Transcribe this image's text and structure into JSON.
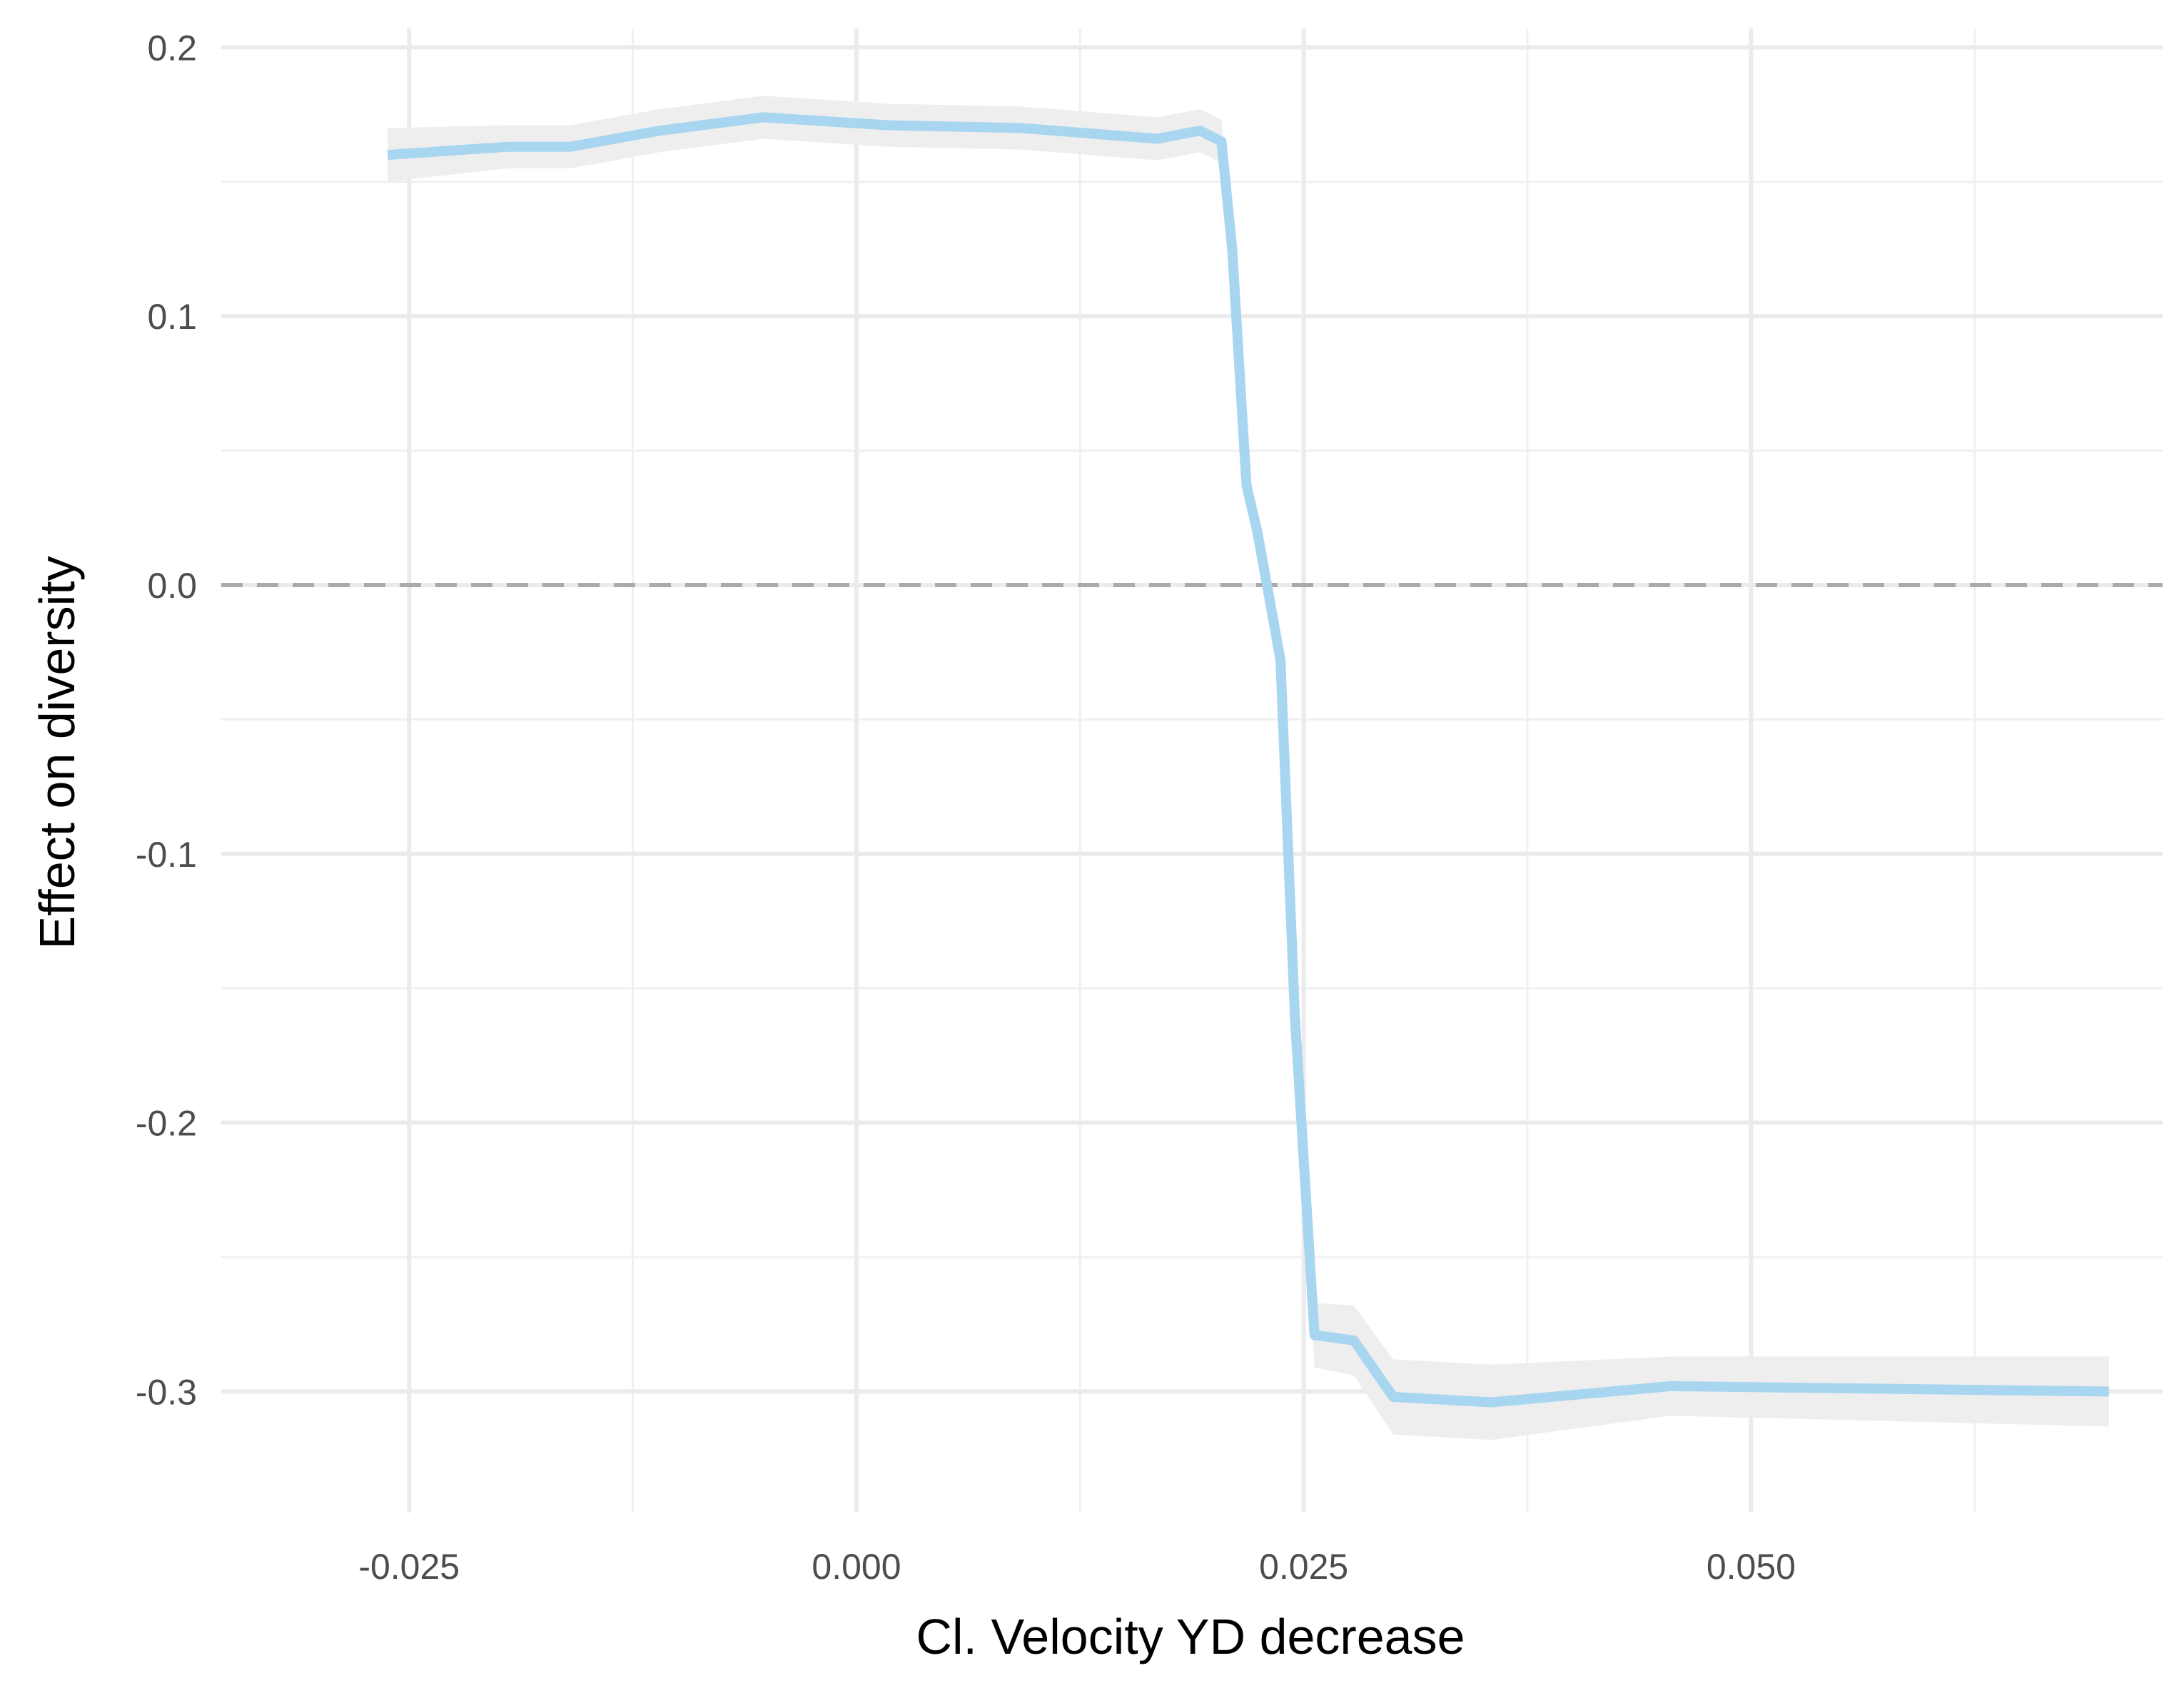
{
  "chart_data": {
    "type": "line",
    "xlabel": "Cl. Velocity YD decrease",
    "ylabel": "Effect on diversity",
    "xlim": [
      -0.0355,
      0.073
    ],
    "ylim": [
      -0.345,
      0.207
    ],
    "x_ticks": [
      {
        "value": -0.025,
        "label": "-0.025"
      },
      {
        "value": 0.0,
        "label": "0.000"
      },
      {
        "value": 0.025,
        "label": "0.025"
      },
      {
        "value": 0.05,
        "label": "0.050"
      }
    ],
    "y_ticks": [
      {
        "value": 0.2,
        "label": "0.2"
      },
      {
        "value": 0.1,
        "label": "0.1"
      },
      {
        "value": 0.0,
        "label": "0.0"
      },
      {
        "value": -0.1,
        "label": "-0.1"
      },
      {
        "value": -0.2,
        "label": "-0.2"
      },
      {
        "value": -0.3,
        "label": "-0.3"
      }
    ],
    "x_minor_ticks": [
      -0.0125,
      0.0125,
      0.0375,
      0.0625
    ],
    "y_minor_ticks": [
      0.15,
      0.05,
      -0.05,
      -0.15,
      -0.25
    ],
    "grid": true,
    "reference_line": {
      "y": 0.0,
      "style": "dashed",
      "color": "#aaaaaa"
    },
    "line_color": "#a8d5ef",
    "band_color": "#eeeeee",
    "series": [
      {
        "x": [
          -0.0262,
          -0.0195,
          -0.016,
          -0.011,
          -0.0052,
          0.0018,
          0.0092,
          0.0168,
          0.0192,
          0.0204,
          0.021,
          0.0218,
          0.0224,
          0.023,
          0.0237,
          0.0245,
          0.0256,
          0.0278,
          0.03,
          0.0355,
          0.0455,
          0.07
        ],
        "y": [
          0.16,
          0.163,
          0.163,
          0.169,
          0.174,
          0.171,
          0.17,
          0.166,
          0.169,
          0.165,
          0.125,
          0.037,
          0.02,
          -0.002,
          -0.028,
          -0.16,
          -0.279,
          -0.281,
          -0.302,
          -0.304,
          -0.298,
          -0.3
        ],
        "lower": [
          0.15,
          0.155,
          0.155,
          0.161,
          0.166,
          0.163,
          0.162,
          0.158,
          0.161,
          0.157,
          0.117,
          0.029,
          0.012,
          -0.01,
          -0.036,
          -0.17,
          -0.291,
          -0.294,
          -0.316,
          -0.318,
          -0.309,
          -0.313
        ],
        "upper": [
          0.17,
          0.171,
          0.171,
          0.177,
          0.182,
          0.179,
          0.178,
          0.174,
          0.177,
          0.173,
          0.133,
          0.045,
          0.028,
          0.006,
          -0.02,
          -0.15,
          -0.267,
          -0.268,
          -0.288,
          -0.29,
          -0.287,
          -0.287
        ]
      }
    ]
  }
}
